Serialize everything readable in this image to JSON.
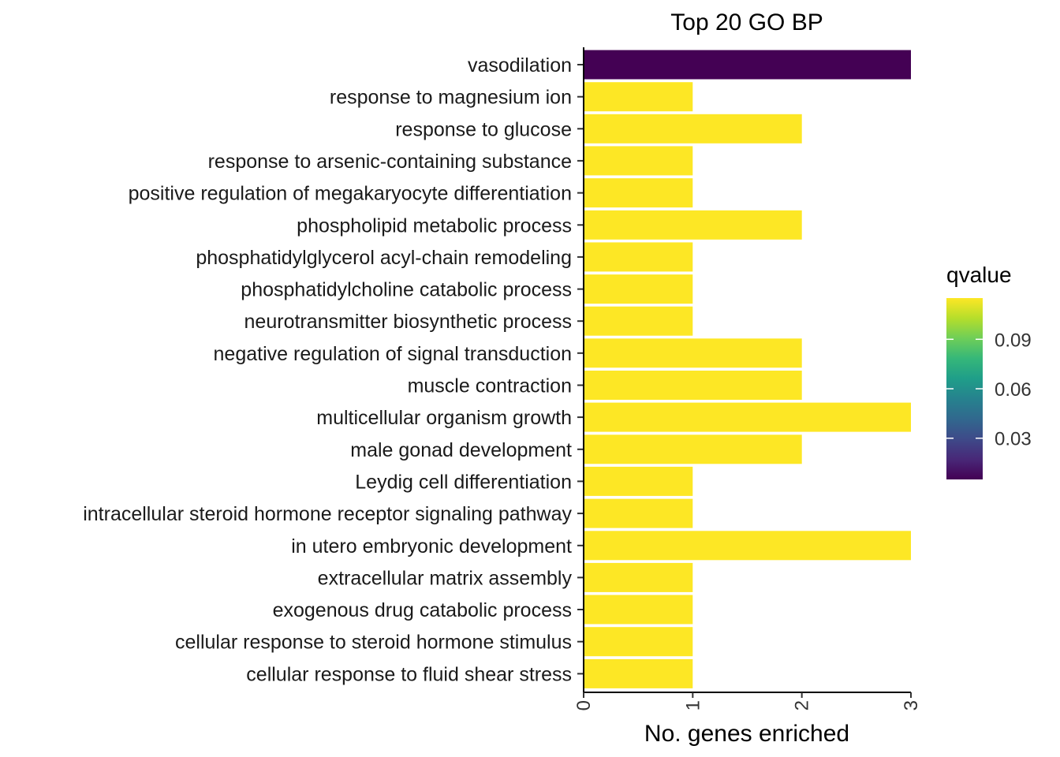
{
  "chart_data": {
    "type": "bar",
    "orientation": "horizontal",
    "title": "Top 20 GO BP",
    "xlabel": "No. genes enriched",
    "ylabel": "",
    "xlim": [
      0,
      3
    ],
    "xticks": [
      "0",
      "1",
      "2",
      "3"
    ],
    "grid": false,
    "categories": [
      "vasodilation",
      "response to magnesium ion",
      "response to glucose",
      "response to arsenic-containing substance",
      "positive regulation of megakaryocyte differentiation",
      "phospholipid metabolic process",
      "phosphatidylglycerol acyl-chain remodeling",
      "phosphatidylcholine catabolic process",
      "neurotransmitter biosynthetic process",
      "negative regulation of signal transduction",
      "muscle contraction",
      "multicellular organism growth",
      "male gonad development",
      "Leydig cell differentiation",
      "intracellular steroid hormone receptor signaling pathway",
      "in utero embryonic development",
      "extracellular matrix assembly",
      "exogenous drug catabolic process",
      "cellular response to steroid hormone stimulus",
      "cellular response to fluid shear stress"
    ],
    "values": [
      3,
      1,
      2,
      1,
      1,
      2,
      1,
      1,
      1,
      2,
      2,
      3,
      2,
      1,
      1,
      3,
      1,
      1,
      1,
      1
    ],
    "colors": [
      "#440154",
      "#fde725",
      "#fde725",
      "#fde725",
      "#fde725",
      "#fde725",
      "#fde725",
      "#fde725",
      "#fde725",
      "#fde725",
      "#fde725",
      "#fde725",
      "#fde725",
      "#fde725",
      "#fde725",
      "#fde725",
      "#fde725",
      "#fde725",
      "#fde725",
      "#fde725"
    ],
    "legend": {
      "title": "qvalue",
      "placement": "right",
      "type": "colorbar",
      "palette": "viridis",
      "range": [
        0.005,
        0.115
      ],
      "ticks": [
        {
          "value": 0.03,
          "label": "0.03"
        },
        {
          "value": 0.06,
          "label": "0.06"
        },
        {
          "value": 0.09,
          "label": "0.09"
        }
      ],
      "gradient_colors": [
        "#440154",
        "#482878",
        "#3e4a89",
        "#31688e",
        "#26828e",
        "#1f9e89",
        "#35b779",
        "#6ece58",
        "#b5de2b",
        "#fde725"
      ]
    }
  }
}
